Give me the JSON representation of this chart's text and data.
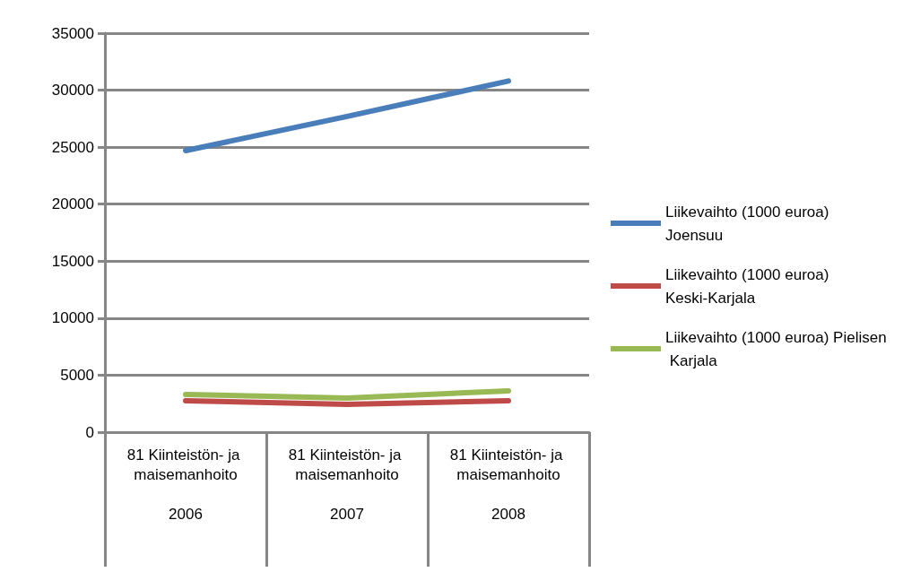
{
  "chart_data": {
    "type": "line",
    "categories": [
      "81 Kiinteistön- ja maisemanhoito\n2006",
      "81 Kiinteistön- ja maisemanhoito\n2007",
      "81 Kiinteistön- ja maisemanhoito\n2008"
    ],
    "series": [
      {
        "name": "Liikevaihto (1000 euroa) Joensuu",
        "color": "#4a7ebb",
        "values": [
          24700,
          27700,
          30800
        ]
      },
      {
        "name": "Liikevaihto (1000 euroa) Keski-Karjala",
        "color": "#be4b48",
        "values": [
          2750,
          2440,
          2750
        ]
      },
      {
        "name": "Liikevaihto (1000 euroa) Pielisen Karjala",
        "color": "#98b954",
        "values": [
          3300,
          2990,
          3620
        ]
      }
    ],
    "ylim": [
      0,
      35000
    ],
    "yticks": [
      0,
      5000,
      10000,
      15000,
      20000,
      25000,
      30000,
      35000
    ],
    "grid": "y",
    "legend": "right",
    "marker": "none",
    "line_style": "solid"
  }
}
